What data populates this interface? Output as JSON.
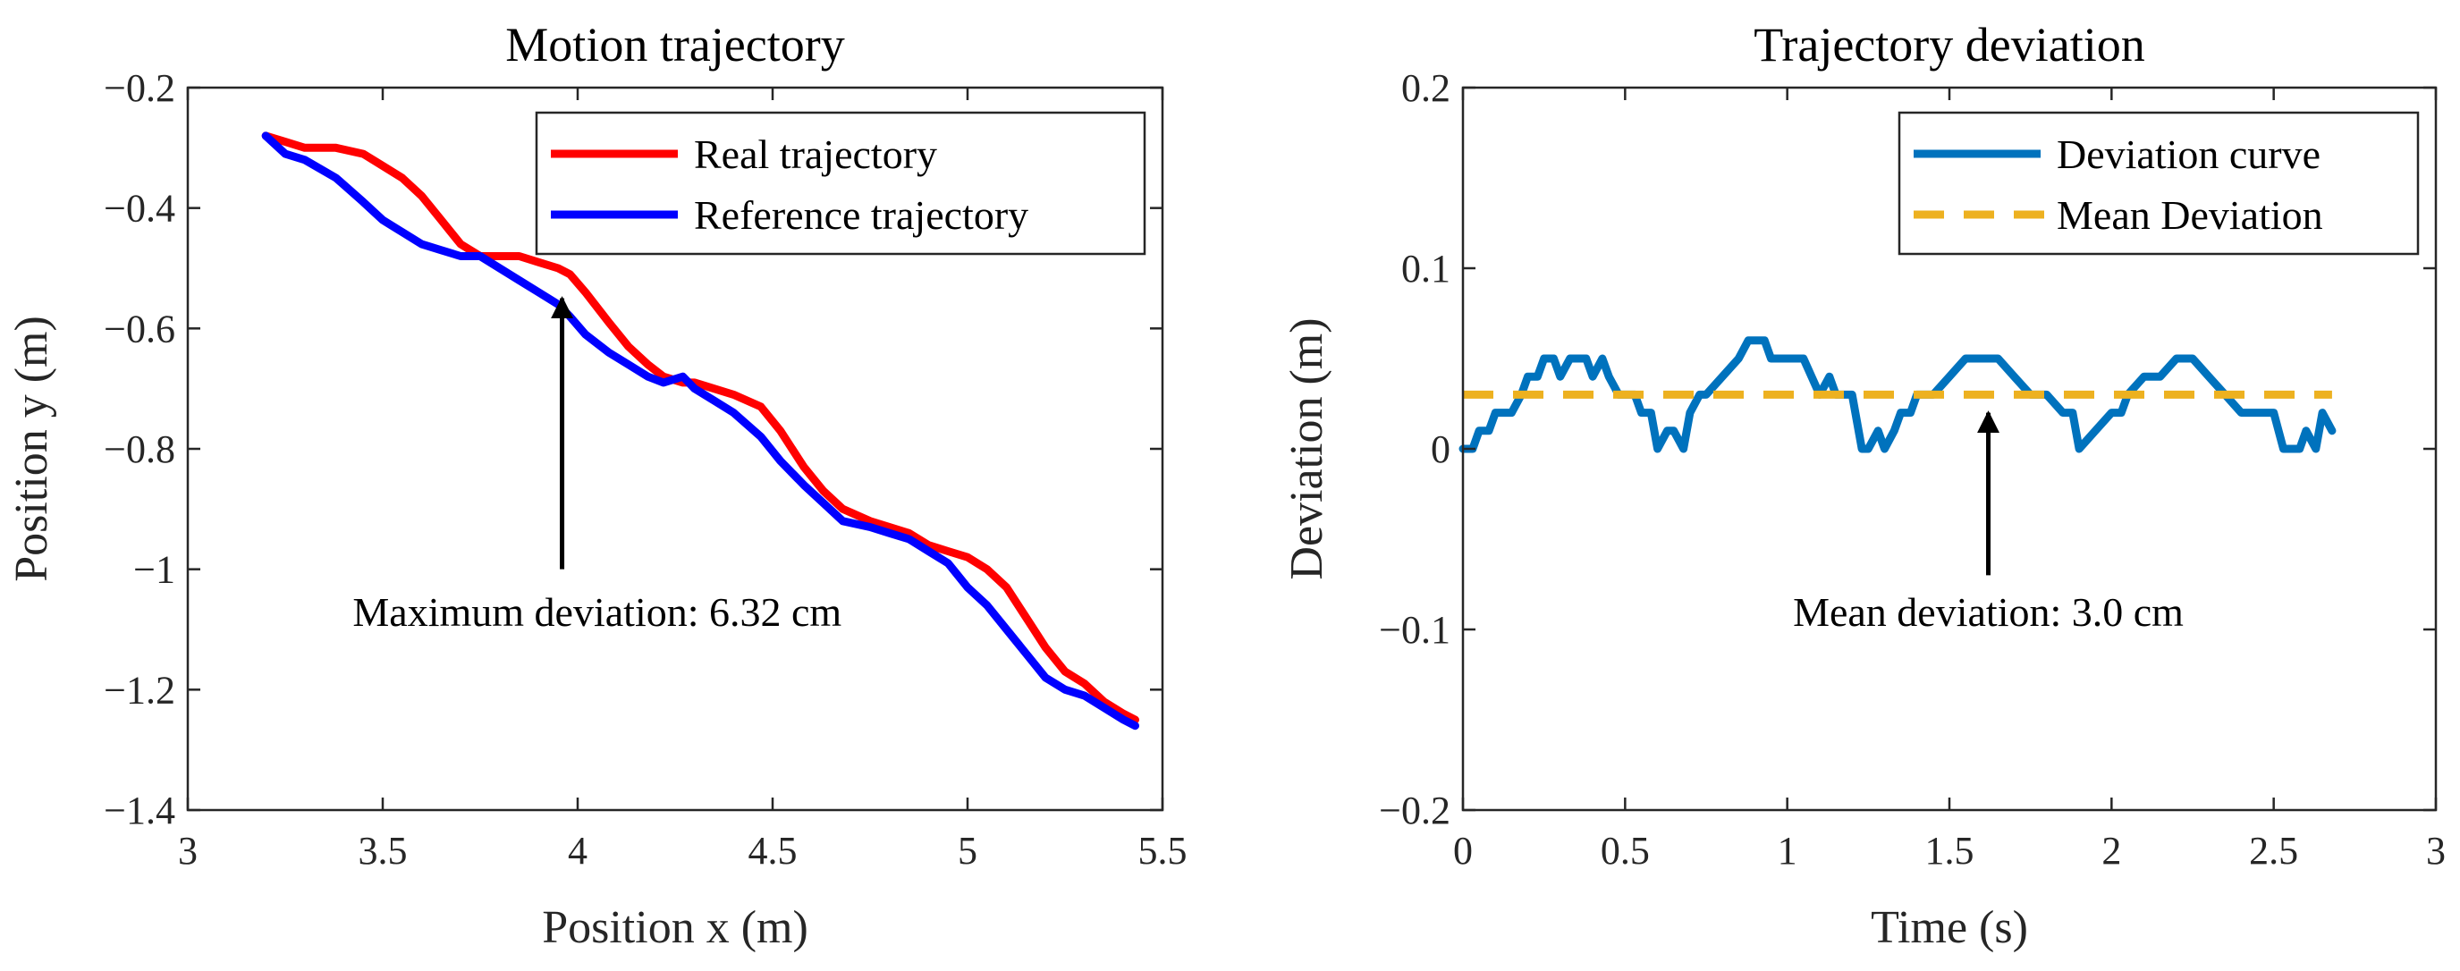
{
  "chart_data": [
    {
      "type": "line",
      "title": "Motion trajectory",
      "xlabel": "Position x (m)",
      "ylabel": "Position y (m)",
      "xlim": [
        3,
        5.5
      ],
      "ylim": [
        -1.4,
        -0.2
      ],
      "xticks": [
        3,
        3.5,
        4,
        4.5,
        5,
        5.5
      ],
      "xtick_labels": [
        "3",
        "3.5",
        "4",
        "4.5",
        "5",
        "5.5"
      ],
      "yticks": [
        -1.4,
        -1.2,
        -1,
        -0.8,
        -0.6,
        -0.4,
        -0.2
      ],
      "ytick_labels": [
        "−1.4",
        "−1.2",
        "−1",
        "−0.8",
        "−0.6",
        "−0.4",
        "−0.2"
      ],
      "grid": false,
      "legend_location": "top-right",
      "series": [
        {
          "name": "Real trajectory",
          "color": "#ff0000",
          "style": "solid",
          "x": [
            3.2,
            3.25,
            3.3,
            3.38,
            3.45,
            3.5,
            3.55,
            3.6,
            3.65,
            3.7,
            3.75,
            3.8,
            3.85,
            3.9,
            3.95,
            3.98,
            4.02,
            4.08,
            4.13,
            4.18,
            4.22,
            4.27,
            4.3,
            4.35,
            4.4,
            4.47,
            4.52,
            4.58,
            4.63,
            4.68,
            4.75,
            4.8,
            4.85,
            4.9,
            4.95,
            5.0,
            5.05,
            5.1,
            5.15,
            5.2,
            5.25,
            5.3,
            5.35,
            5.4,
            5.43
          ],
          "y": [
            -0.28,
            -0.29,
            -0.3,
            -0.3,
            -0.31,
            -0.33,
            -0.35,
            -0.38,
            -0.42,
            -0.46,
            -0.48,
            -0.48,
            -0.48,
            -0.49,
            -0.5,
            -0.51,
            -0.54,
            -0.59,
            -0.63,
            -0.66,
            -0.68,
            -0.69,
            -0.69,
            -0.7,
            -0.71,
            -0.73,
            -0.77,
            -0.83,
            -0.87,
            -0.9,
            -0.92,
            -0.93,
            -0.94,
            -0.96,
            -0.97,
            -0.98,
            -1.0,
            -1.03,
            -1.08,
            -1.13,
            -1.17,
            -1.19,
            -1.22,
            -1.24,
            -1.25
          ]
        },
        {
          "name": "Reference trajectory",
          "color": "#0000ff",
          "style": "solid",
          "x": [
            3.2,
            3.25,
            3.3,
            3.38,
            3.45,
            3.5,
            3.55,
            3.6,
            3.65,
            3.7,
            3.75,
            3.8,
            3.85,
            3.9,
            3.95,
            3.98,
            4.02,
            4.08,
            4.13,
            4.18,
            4.22,
            4.27,
            4.3,
            4.35,
            4.4,
            4.47,
            4.52,
            4.58,
            4.63,
            4.68,
            4.75,
            4.8,
            4.85,
            4.9,
            4.95,
            5.0,
            5.05,
            5.1,
            5.15,
            5.2,
            5.25,
            5.3,
            5.35,
            5.4,
            5.43
          ],
          "y": [
            -0.28,
            -0.31,
            -0.32,
            -0.35,
            -0.39,
            -0.42,
            -0.44,
            -0.46,
            -0.47,
            -0.48,
            -0.48,
            -0.5,
            -0.52,
            -0.54,
            -0.56,
            -0.58,
            -0.61,
            -0.64,
            -0.66,
            -0.68,
            -0.69,
            -0.68,
            -0.7,
            -0.72,
            -0.74,
            -0.78,
            -0.82,
            -0.86,
            -0.89,
            -0.92,
            -0.93,
            -0.94,
            -0.95,
            -0.97,
            -0.99,
            -1.03,
            -1.06,
            -1.1,
            -1.14,
            -1.18,
            -1.2,
            -1.21,
            -1.23,
            -1.25,
            -1.26
          ]
        }
      ],
      "annotations": [
        {
          "text": "Maximum deviation: 6.32 cm",
          "arrow_tip": [
            3.96,
            -0.55
          ],
          "arrow_tail": [
            3.96,
            -1.0
          ],
          "text_at": [
            4.05,
            -1.07
          ]
        }
      ]
    },
    {
      "type": "line",
      "title": "Trajectory deviation",
      "xlabel": "Time (s)",
      "ylabel": "Deviation (m)",
      "xlim": [
        0,
        3
      ],
      "ylim": [
        -0.2,
        0.2
      ],
      "xticks": [
        0,
        0.5,
        1,
        1.5,
        2,
        2.5,
        3
      ],
      "xtick_labels": [
        "0",
        "0.5",
        "1",
        "1.5",
        "2",
        "2.5",
        "3"
      ],
      "yticks": [
        -0.2,
        -0.1,
        0,
        0.1,
        0.2
      ],
      "ytick_labels": [
        "−0.2",
        "−0.1",
        "0",
        "0.1",
        "0.2"
      ],
      "grid": false,
      "legend_location": "top-right",
      "series": [
        {
          "name": "Deviation curve",
          "color": "#0072bd",
          "style": "solid",
          "x": [
            0,
            0.03,
            0.05,
            0.08,
            0.1,
            0.13,
            0.15,
            0.18,
            0.2,
            0.23,
            0.25,
            0.28,
            0.3,
            0.33,
            0.35,
            0.38,
            0.4,
            0.43,
            0.45,
            0.48,
            0.5,
            0.53,
            0.55,
            0.58,
            0.6,
            0.63,
            0.65,
            0.68,
            0.7,
            0.73,
            0.75,
            0.8,
            0.85,
            0.88,
            0.9,
            0.93,
            0.95,
            0.98,
            1.0,
            1.03,
            1.05,
            1.1,
            1.13,
            1.15,
            1.2,
            1.23,
            1.25,
            1.28,
            1.3,
            1.33,
            1.35,
            1.38,
            1.4,
            1.45,
            1.5,
            1.55,
            1.6,
            1.65,
            1.7,
            1.75,
            1.8,
            1.85,
            1.88,
            1.9,
            1.95,
            2.0,
            2.03,
            2.05,
            2.1,
            2.15,
            2.2,
            2.25,
            2.3,
            2.35,
            2.4,
            2.45,
            2.5,
            2.53,
            2.55,
            2.58,
            2.6,
            2.63,
            2.65,
            2.68
          ],
          "y": [
            0.0,
            0.0,
            0.01,
            0.01,
            0.02,
            0.02,
            0.02,
            0.03,
            0.04,
            0.04,
            0.05,
            0.05,
            0.04,
            0.05,
            0.05,
            0.05,
            0.04,
            0.05,
            0.04,
            0.03,
            0.03,
            0.03,
            0.02,
            0.02,
            0.0,
            0.01,
            0.01,
            0.0,
            0.02,
            0.03,
            0.03,
            0.04,
            0.05,
            0.06,
            0.06,
            0.06,
            0.05,
            0.05,
            0.05,
            0.05,
            0.05,
            0.03,
            0.04,
            0.03,
            0.03,
            0.0,
            0.0,
            0.01,
            0.0,
            0.01,
            0.02,
            0.02,
            0.03,
            0.03,
            0.04,
            0.05,
            0.05,
            0.05,
            0.04,
            0.03,
            0.03,
            0.02,
            0.02,
            0.0,
            0.01,
            0.02,
            0.02,
            0.03,
            0.04,
            0.04,
            0.05,
            0.05,
            0.04,
            0.03,
            0.02,
            0.02,
            0.02,
            0.0,
            0.0,
            0.0,
            0.01,
            0.0,
            0.02,
            0.01
          ]
        },
        {
          "name": "Mean Deviation",
          "color": "#edb120",
          "style": "dashed",
          "x": [
            0,
            2.68
          ],
          "y": [
            0.03,
            0.03
          ]
        }
      ],
      "annotations": [
        {
          "text": "Mean deviation: 3.0 cm",
          "arrow_tip": [
            1.62,
            0.02
          ],
          "arrow_tail": [
            1.62,
            -0.07
          ],
          "text_at": [
            1.62,
            -0.09
          ]
        }
      ]
    }
  ]
}
